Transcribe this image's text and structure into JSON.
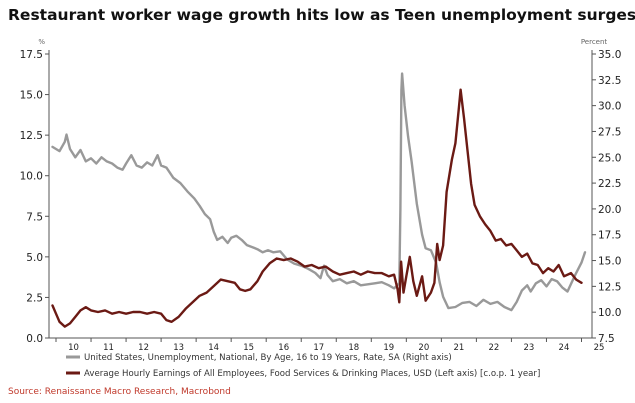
{
  "title": "Restaurant worker wage growth hits low as Teen unemployment surges",
  "source": "Source: Renaissance Macro Research, Macrobond",
  "colors": {
    "grey_series": "#999999",
    "red_series": "#6b1a14",
    "axis": "#555555",
    "source_text": "#c0392b"
  },
  "chart_data": {
    "type": "line",
    "title": "Restaurant worker wage growth hits low as Teen unemployment surges",
    "left_axis": {
      "unit": "%",
      "min": 0.0,
      "max": 17.5,
      "ticks": [
        "0.0",
        "2.5",
        "5.0",
        "7.5",
        "10.0",
        "12.5",
        "15.0",
        "17.5"
      ]
    },
    "right_axis": {
      "unit": "Percent",
      "min": 7.5,
      "max": 35.0,
      "ticks": [
        "7.5",
        "10.0",
        "12.5",
        "15.0",
        "17.5",
        "20.0",
        "22.5",
        "25.0",
        "27.5",
        "30.0",
        "32.5",
        "35.0"
      ]
    },
    "x_axis": {
      "min": 2009.8,
      "max": 2025.3,
      "ticks": [
        "10",
        "11",
        "12",
        "13",
        "14",
        "15",
        "16",
        "17",
        "18",
        "19",
        "20",
        "21",
        "22",
        "23",
        "24",
        "25"
      ]
    },
    "legend_position": "bottom",
    "series": [
      {
        "name": "United States, Unemployment, National, By Age, 16 to 19 Years, Rate, SA (Right axis)",
        "axis": "right",
        "color": "#999999",
        "points": [
          [
            2009.9,
            26.0
          ],
          [
            2010.1,
            25.6
          ],
          [
            2010.25,
            26.5
          ],
          [
            2010.3,
            27.2
          ],
          [
            2010.4,
            25.8
          ],
          [
            2010.55,
            25.0
          ],
          [
            2010.7,
            25.7
          ],
          [
            2010.85,
            24.6
          ],
          [
            2011.0,
            24.9
          ],
          [
            2011.15,
            24.4
          ],
          [
            2011.3,
            25.0
          ],
          [
            2011.45,
            24.6
          ],
          [
            2011.6,
            24.4
          ],
          [
            2011.75,
            24.0
          ],
          [
            2011.9,
            23.8
          ],
          [
            2012.0,
            24.4
          ],
          [
            2012.15,
            25.2
          ],
          [
            2012.3,
            24.2
          ],
          [
            2012.45,
            24.0
          ],
          [
            2012.6,
            24.5
          ],
          [
            2012.75,
            24.2
          ],
          [
            2012.9,
            25.2
          ],
          [
            2013.0,
            24.2
          ],
          [
            2013.15,
            24.0
          ],
          [
            2013.35,
            23.0
          ],
          [
            2013.55,
            22.5
          ],
          [
            2013.75,
            21.7
          ],
          [
            2013.95,
            21.0
          ],
          [
            2014.1,
            20.3
          ],
          [
            2014.25,
            19.5
          ],
          [
            2014.4,
            19.0
          ],
          [
            2014.5,
            17.8
          ],
          [
            2014.6,
            17.0
          ],
          [
            2014.75,
            17.3
          ],
          [
            2014.9,
            16.7
          ],
          [
            2015.0,
            17.2
          ],
          [
            2015.15,
            17.4
          ],
          [
            2015.3,
            17.0
          ],
          [
            2015.45,
            16.5
          ],
          [
            2015.6,
            16.3
          ],
          [
            2015.75,
            16.1
          ],
          [
            2015.9,
            15.8
          ],
          [
            2016.05,
            16.0
          ],
          [
            2016.2,
            15.8
          ],
          [
            2016.4,
            15.9
          ],
          [
            2016.6,
            15.1
          ],
          [
            2016.8,
            14.7
          ],
          [
            2017.0,
            14.5
          ],
          [
            2017.2,
            14.2
          ],
          [
            2017.4,
            13.8
          ],
          [
            2017.55,
            13.3
          ],
          [
            2017.65,
            14.5
          ],
          [
            2017.75,
            13.6
          ],
          [
            2017.9,
            13.0
          ],
          [
            2018.1,
            13.2
          ],
          [
            2018.3,
            12.8
          ],
          [
            2018.5,
            13.0
          ],
          [
            2018.7,
            12.6
          ],
          [
            2018.9,
            12.7
          ],
          [
            2019.1,
            12.8
          ],
          [
            2019.3,
            12.9
          ],
          [
            2019.5,
            12.6
          ],
          [
            2019.65,
            12.3
          ],
          [
            2019.8,
            12.8
          ],
          [
            2019.83,
            20.0
          ],
          [
            2019.86,
            31.5
          ],
          [
            2019.88,
            33.1
          ],
          [
            2019.95,
            30.0
          ],
          [
            2020.05,
            27.0
          ],
          [
            2020.15,
            24.6
          ],
          [
            2020.3,
            20.5
          ],
          [
            2020.45,
            17.5
          ],
          [
            2020.55,
            16.2
          ],
          [
            2020.7,
            16.0
          ],
          [
            2020.85,
            14.8
          ],
          [
            2020.95,
            12.9
          ],
          [
            2021.05,
            11.5
          ],
          [
            2021.2,
            10.4
          ],
          [
            2021.4,
            10.5
          ],
          [
            2021.6,
            10.9
          ],
          [
            2021.8,
            11.0
          ],
          [
            2022.0,
            10.6
          ],
          [
            2022.2,
            11.2
          ],
          [
            2022.4,
            10.8
          ],
          [
            2022.6,
            11.0
          ],
          [
            2022.8,
            10.5
          ],
          [
            2023.0,
            10.2
          ],
          [
            2023.15,
            11.0
          ],
          [
            2023.3,
            12.1
          ],
          [
            2023.45,
            12.6
          ],
          [
            2023.55,
            12.0
          ],
          [
            2023.7,
            12.8
          ],
          [
            2023.85,
            13.1
          ],
          [
            2024.0,
            12.5
          ],
          [
            2024.15,
            13.2
          ],
          [
            2024.3,
            13.0
          ],
          [
            2024.45,
            12.4
          ],
          [
            2024.6,
            12.0
          ],
          [
            2024.75,
            13.1
          ],
          [
            2024.85,
            13.8
          ],
          [
            2025.0,
            14.8
          ],
          [
            2025.1,
            15.8
          ]
        ]
      },
      {
        "name": "Average Hourly Earnings of All Employees, Food Services & Drinking Places, USD (Left axis) [c.o.p. 1 year]",
        "axis": "left",
        "color": "#6b1a14",
        "points": [
          [
            2009.9,
            2.0
          ],
          [
            2010.0,
            1.5
          ],
          [
            2010.1,
            1.0
          ],
          [
            2010.25,
            0.7
          ],
          [
            2010.4,
            0.9
          ],
          [
            2010.55,
            1.3
          ],
          [
            2010.7,
            1.7
          ],
          [
            2010.85,
            1.9
          ],
          [
            2011.0,
            1.7
          ],
          [
            2011.2,
            1.6
          ],
          [
            2011.4,
            1.7
          ],
          [
            2011.6,
            1.5
          ],
          [
            2011.8,
            1.6
          ],
          [
            2012.0,
            1.5
          ],
          [
            2012.2,
            1.6
          ],
          [
            2012.4,
            1.6
          ],
          [
            2012.6,
            1.5
          ],
          [
            2012.8,
            1.6
          ],
          [
            2013.0,
            1.5
          ],
          [
            2013.15,
            1.1
          ],
          [
            2013.3,
            1.0
          ],
          [
            2013.5,
            1.3
          ],
          [
            2013.7,
            1.8
          ],
          [
            2013.9,
            2.2
          ],
          [
            2014.1,
            2.6
          ],
          [
            2014.3,
            2.8
          ],
          [
            2014.5,
            3.2
          ],
          [
            2014.7,
            3.6
          ],
          [
            2014.9,
            3.5
          ],
          [
            2015.1,
            3.4
          ],
          [
            2015.25,
            3.0
          ],
          [
            2015.4,
            2.9
          ],
          [
            2015.55,
            3.0
          ],
          [
            2015.75,
            3.5
          ],
          [
            2015.9,
            4.1
          ],
          [
            2016.1,
            4.6
          ],
          [
            2016.3,
            4.9
          ],
          [
            2016.5,
            4.8
          ],
          [
            2016.7,
            4.9
          ],
          [
            2016.9,
            4.7
          ],
          [
            2017.1,
            4.4
          ],
          [
            2017.3,
            4.5
          ],
          [
            2017.5,
            4.3
          ],
          [
            2017.7,
            4.4
          ],
          [
            2017.9,
            4.1
          ],
          [
            2018.1,
            3.9
          ],
          [
            2018.3,
            4.0
          ],
          [
            2018.5,
            4.1
          ],
          [
            2018.7,
            3.9
          ],
          [
            2018.9,
            4.1
          ],
          [
            2019.1,
            4.0
          ],
          [
            2019.3,
            4.0
          ],
          [
            2019.5,
            3.8
          ],
          [
            2019.65,
            3.9
          ],
          [
            2019.75,
            3.0
          ],
          [
            2019.8,
            2.2
          ],
          [
            2019.85,
            4.7
          ],
          [
            2019.92,
            2.8
          ],
          [
            2020.0,
            3.8
          ],
          [
            2020.1,
            5.0
          ],
          [
            2020.2,
            3.5
          ],
          [
            2020.3,
            2.6
          ],
          [
            2020.45,
            3.8
          ],
          [
            2020.55,
            2.3
          ],
          [
            2020.7,
            2.8
          ],
          [
            2020.8,
            3.4
          ],
          [
            2020.88,
            5.8
          ],
          [
            2020.95,
            4.8
          ],
          [
            2021.05,
            5.7
          ],
          [
            2021.15,
            9.0
          ],
          [
            2021.3,
            11.0
          ],
          [
            2021.4,
            12.0
          ],
          [
            2021.5,
            14.2
          ],
          [
            2021.55,
            15.3
          ],
          [
            2021.65,
            13.5
          ],
          [
            2021.75,
            11.5
          ],
          [
            2021.85,
            9.5
          ],
          [
            2021.95,
            8.2
          ],
          [
            2022.1,
            7.5
          ],
          [
            2022.25,
            7.0
          ],
          [
            2022.4,
            6.6
          ],
          [
            2022.55,
            6.0
          ],
          [
            2022.7,
            6.1
          ],
          [
            2022.85,
            5.7
          ],
          [
            2023.0,
            5.8
          ],
          [
            2023.15,
            5.4
          ],
          [
            2023.3,
            5.0
          ],
          [
            2023.45,
            5.2
          ],
          [
            2023.6,
            4.6
          ],
          [
            2023.75,
            4.5
          ],
          [
            2023.9,
            4.0
          ],
          [
            2024.05,
            4.3
          ],
          [
            2024.2,
            4.1
          ],
          [
            2024.35,
            4.5
          ],
          [
            2024.5,
            3.8
          ],
          [
            2024.7,
            4.0
          ],
          [
            2024.85,
            3.6
          ],
          [
            2025.0,
            3.4
          ]
        ]
      }
    ]
  }
}
